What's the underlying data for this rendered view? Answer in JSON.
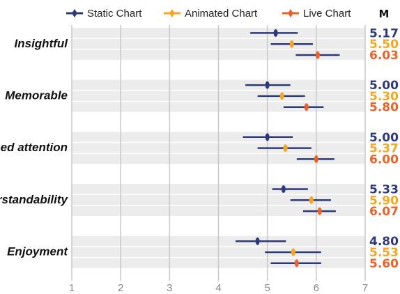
{
  "chart_data": {
    "type": "interval",
    "categories": [
      "Insightful",
      "Memorable",
      "Focused attention",
      "Understandability",
      "Enjoyment"
    ],
    "xlim": [
      1,
      7
    ],
    "xticks": [
      "1",
      "2",
      "3",
      "4",
      "5",
      "6",
      "7"
    ],
    "value_column_header": "M",
    "grid": true,
    "legend_position": "top",
    "series": [
      {
        "name": "Static Chart",
        "color": "#2e3a78",
        "mean": [
          5.17,
          5.0,
          5.0,
          5.33,
          4.8
        ],
        "mean_labels": [
          "5.17",
          "5.00",
          "5.00",
          "5.33",
          "4.80"
        ],
        "lower": [
          4.65,
          4.55,
          4.5,
          5.1,
          4.35
        ],
        "upper": [
          5.62,
          5.47,
          5.52,
          5.83,
          5.38
        ]
      },
      {
        "name": "Animated Chart",
        "color": "#f5a623",
        "mean": [
          5.5,
          5.3,
          5.37,
          5.9,
          5.53
        ],
        "mean_labels": [
          "5.50",
          "5.30",
          "5.37",
          "5.90",
          "5.53"
        ],
        "lower": [
          5.07,
          4.8,
          4.8,
          5.47,
          4.95
        ],
        "upper": [
          5.93,
          5.77,
          5.9,
          6.3,
          6.1
        ]
      },
      {
        "name": "Live Chart",
        "color": "#e8622a",
        "mean": [
          6.03,
          5.8,
          6.0,
          6.07,
          5.6
        ],
        "mean_labels": [
          "6.03",
          "5.80",
          "6.00",
          "6.07",
          "5.60"
        ],
        "lower": [
          5.58,
          5.33,
          5.6,
          5.73,
          5.07
        ],
        "upper": [
          6.48,
          6.15,
          6.37,
          6.4,
          6.1
        ]
      }
    ]
  }
}
